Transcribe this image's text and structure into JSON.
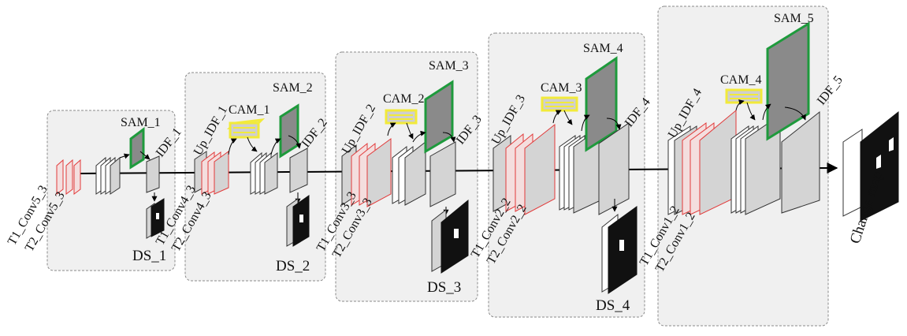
{
  "diagram": {
    "stages": [
      {
        "sam": "SAM_1",
        "idf": "IDF_1",
        "ds": "DS_1",
        "inputs": [
          "T1_Conv5_3",
          "T2_Conv5_3"
        ]
      },
      {
        "sam": "SAM_2",
        "idf": "IDF_2",
        "ds": "DS_2",
        "cam": "CAM_1",
        "up": "Up_IDF_1",
        "inputs": [
          "T1_Conv4_3",
          "T2_Conv4_3"
        ]
      },
      {
        "sam": "SAM_3",
        "idf": "IDF_3",
        "ds": "DS_3",
        "cam": "CAM_2",
        "up": "Up_IDF_2",
        "inputs": [
          "T1_Conv3_3",
          "T2_Conv3_3"
        ]
      },
      {
        "sam": "SAM_4",
        "idf": "IDF_4",
        "ds": "DS_4",
        "cam": "CAM_3",
        "up": "Up_IDF_3",
        "inputs": [
          "T1_Conv2_2",
          "T2_Conv2_2"
        ]
      },
      {
        "sam": "SAM_5",
        "idf": "IDF_5",
        "cam": "CAM_4",
        "up": "Up_IDF_4",
        "inputs": [
          "T1_Conv1_2",
          "T2_Conv1_2"
        ]
      }
    ],
    "output": "Change map",
    "colors": {
      "panel_fill": "#f0f0f0",
      "panel_border": "#8a8a8a",
      "feature_fill": "#d4d4d4",
      "input_border": "#e23a3a",
      "sam_border": "#1e9a3c",
      "sam_fill": "#8a8a8a",
      "cam_fill": "#f2ea3a",
      "cam_body": "#cfcfcf"
    }
  }
}
